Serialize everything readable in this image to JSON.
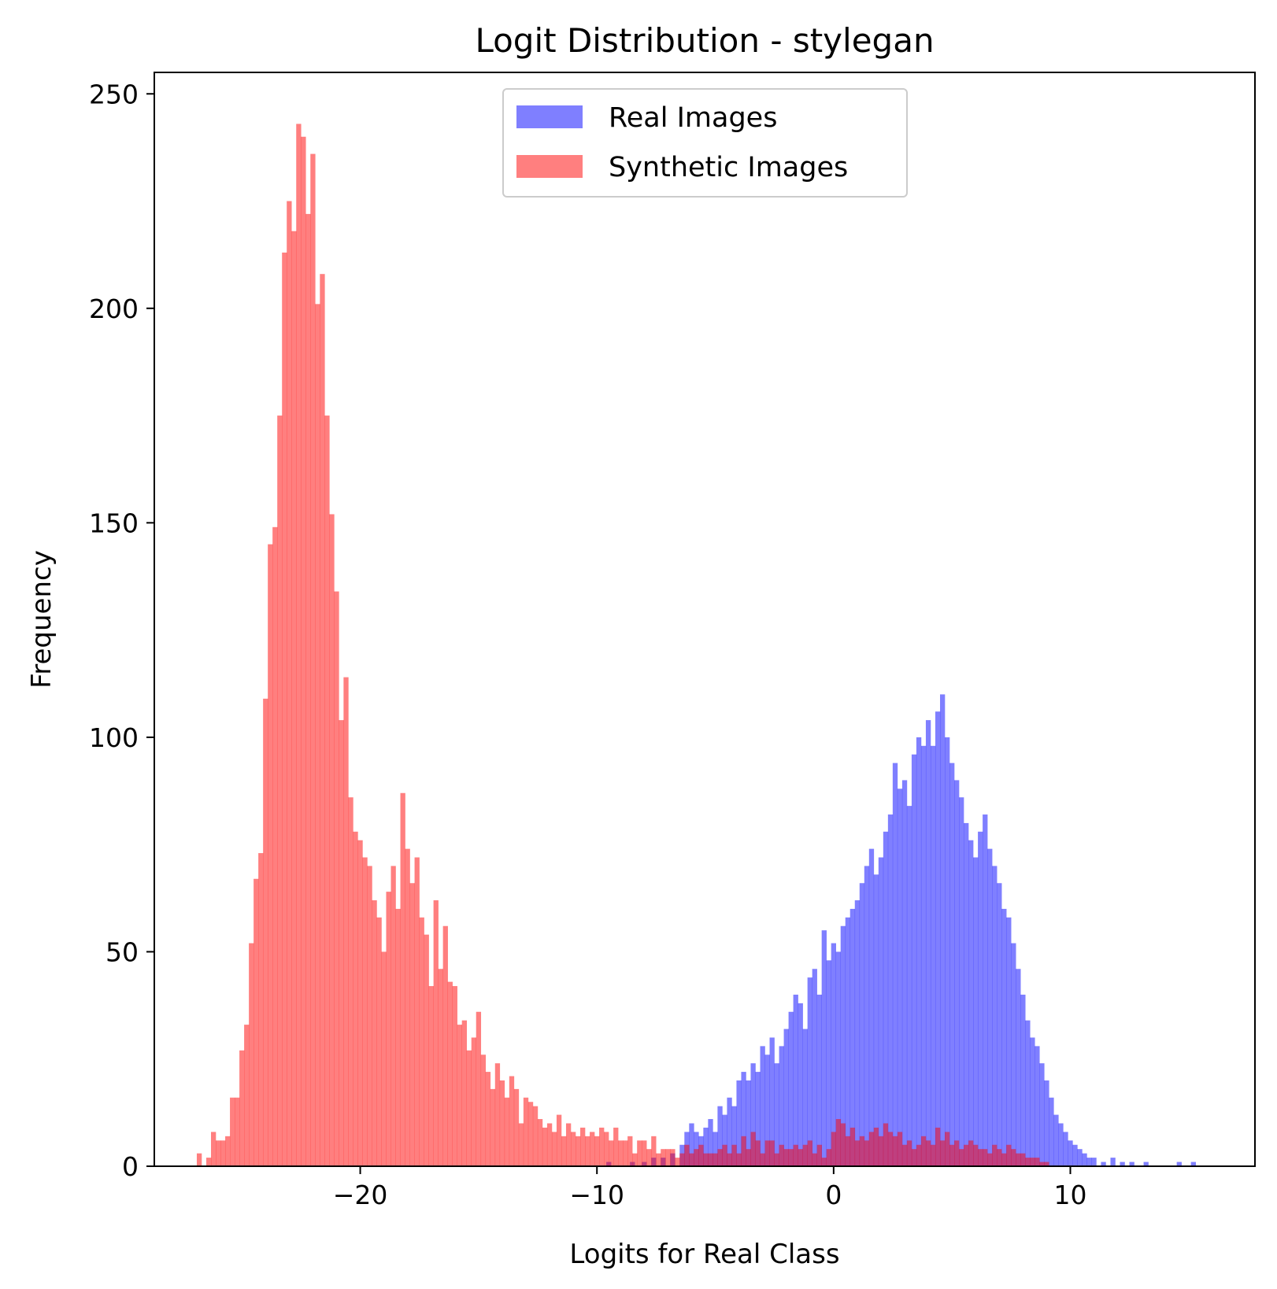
{
  "chart_data": {
    "type": "histogram",
    "title": "Logit Distribution - stylegan",
    "xlabel": "Logits for Real Class",
    "ylabel": "Frequency",
    "xlim": [
      -28.7,
      17.8
    ],
    "ylim": [
      0,
      255
    ],
    "x_ticks": [
      -20,
      -10,
      0,
      10
    ],
    "x_tick_labels": [
      "−20",
      "−10",
      "0",
      "10"
    ],
    "y_ticks": [
      0,
      50,
      100,
      150,
      200,
      250
    ],
    "y_tick_labels": [
      "0",
      "50",
      "100",
      "150",
      "200",
      "250"
    ],
    "grid": false,
    "legend_position": "upper center",
    "series": [
      {
        "name": "Real Images",
        "color": "#0000ff",
        "alpha": 0.5,
        "bin_width": 0.21,
        "bins": [
          [
            -9.5,
            1
          ],
          [
            -8.5,
            1
          ],
          [
            -8.0,
            1
          ],
          [
            -7.6,
            2
          ],
          [
            -7.2,
            2
          ],
          [
            -6.8,
            3
          ],
          [
            -6.4,
            5
          ],
          [
            -6.2,
            8
          ],
          [
            -6.0,
            10
          ],
          [
            -5.8,
            8
          ],
          [
            -5.6,
            7
          ],
          [
            -5.4,
            9
          ],
          [
            -5.2,
            11
          ],
          [
            -5.0,
            8
          ],
          [
            -4.8,
            14
          ],
          [
            -4.6,
            12
          ],
          [
            -4.4,
            16
          ],
          [
            -4.2,
            14
          ],
          [
            -4.0,
            20
          ],
          [
            -3.8,
            22
          ],
          [
            -3.6,
            20
          ],
          [
            -3.4,
            24
          ],
          [
            -3.2,
            22
          ],
          [
            -3.0,
            28
          ],
          [
            -2.8,
            26
          ],
          [
            -2.6,
            30
          ],
          [
            -2.4,
            24
          ],
          [
            -2.2,
            28
          ],
          [
            -2.0,
            32
          ],
          [
            -1.8,
            36
          ],
          [
            -1.6,
            40
          ],
          [
            -1.4,
            38
          ],
          [
            -1.2,
            32
          ],
          [
            -1.0,
            44
          ],
          [
            -0.8,
            46
          ],
          [
            -0.6,
            40
          ],
          [
            -0.4,
            55
          ],
          [
            -0.2,
            48
          ],
          [
            0.0,
            52
          ],
          [
            0.2,
            50
          ],
          [
            0.4,
            56
          ],
          [
            0.6,
            58
          ],
          [
            0.8,
            60
          ],
          [
            1.0,
            62
          ],
          [
            1.2,
            66
          ],
          [
            1.4,
            70
          ],
          [
            1.6,
            74
          ],
          [
            1.8,
            68
          ],
          [
            2.0,
            72
          ],
          [
            2.2,
            78
          ],
          [
            2.4,
            82
          ],
          [
            2.6,
            94
          ],
          [
            2.8,
            88
          ],
          [
            3.0,
            90
          ],
          [
            3.2,
            84
          ],
          [
            3.4,
            96
          ],
          [
            3.6,
            100
          ],
          [
            3.8,
            98
          ],
          [
            4.0,
            104
          ],
          [
            4.2,
            98
          ],
          [
            4.4,
            106
          ],
          [
            4.6,
            110
          ],
          [
            4.8,
            100
          ],
          [
            5.0,
            94
          ],
          [
            5.2,
            90
          ],
          [
            5.4,
            86
          ],
          [
            5.6,
            80
          ],
          [
            5.8,
            76
          ],
          [
            6.0,
            72
          ],
          [
            6.2,
            78
          ],
          [
            6.4,
            82
          ],
          [
            6.6,
            74
          ],
          [
            6.8,
            70
          ],
          [
            7.0,
            66
          ],
          [
            7.2,
            60
          ],
          [
            7.4,
            58
          ],
          [
            7.6,
            52
          ],
          [
            7.8,
            46
          ],
          [
            8.0,
            40
          ],
          [
            8.2,
            34
          ],
          [
            8.4,
            30
          ],
          [
            8.6,
            28
          ],
          [
            8.8,
            24
          ],
          [
            9.0,
            20
          ],
          [
            9.2,
            16
          ],
          [
            9.4,
            12
          ],
          [
            9.6,
            10
          ],
          [
            9.8,
            8
          ],
          [
            10.0,
            6
          ],
          [
            10.2,
            5
          ],
          [
            10.4,
            4
          ],
          [
            10.6,
            3
          ],
          [
            10.8,
            2
          ],
          [
            11.0,
            2
          ],
          [
            11.4,
            1
          ],
          [
            11.8,
            2
          ],
          [
            12.2,
            1
          ],
          [
            12.6,
            1
          ],
          [
            13.2,
            1
          ],
          [
            14.6,
            1
          ],
          [
            15.2,
            1
          ]
        ]
      },
      {
        "name": "Synthetic Images",
        "color": "#ff0000",
        "alpha": 0.5,
        "bin_width": 0.21,
        "bins": [
          [
            -26.8,
            3
          ],
          [
            -26.4,
            2
          ],
          [
            -26.2,
            8
          ],
          [
            -26.0,
            6
          ],
          [
            -25.8,
            6
          ],
          [
            -25.6,
            7
          ],
          [
            -25.4,
            16
          ],
          [
            -25.2,
            16
          ],
          [
            -25.0,
            27
          ],
          [
            -24.8,
            33
          ],
          [
            -24.6,
            52
          ],
          [
            -24.4,
            67
          ],
          [
            -24.2,
            73
          ],
          [
            -24.0,
            109
          ],
          [
            -23.8,
            145
          ],
          [
            -23.6,
            149
          ],
          [
            -23.4,
            175
          ],
          [
            -23.2,
            213
          ],
          [
            -23.0,
            225
          ],
          [
            -22.8,
            218
          ],
          [
            -22.6,
            243
          ],
          [
            -22.4,
            240
          ],
          [
            -22.2,
            222
          ],
          [
            -22.0,
            236
          ],
          [
            -21.8,
            201
          ],
          [
            -21.6,
            208
          ],
          [
            -21.4,
            175
          ],
          [
            -21.2,
            152
          ],
          [
            -21.0,
            134
          ],
          [
            -20.8,
            104
          ],
          [
            -20.6,
            114
          ],
          [
            -20.4,
            86
          ],
          [
            -20.2,
            78
          ],
          [
            -20.0,
            76
          ],
          [
            -19.8,
            72
          ],
          [
            -19.6,
            70
          ],
          [
            -19.4,
            62
          ],
          [
            -19.2,
            58
          ],
          [
            -19.0,
            50
          ],
          [
            -18.8,
            64
          ],
          [
            -18.6,
            70
          ],
          [
            -18.4,
            60
          ],
          [
            -18.2,
            87
          ],
          [
            -18.0,
            74
          ],
          [
            -17.8,
            66
          ],
          [
            -17.6,
            72
          ],
          [
            -17.4,
            58
          ],
          [
            -17.2,
            54
          ],
          [
            -17.0,
            42
          ],
          [
            -16.8,
            62
          ],
          [
            -16.6,
            46
          ],
          [
            -16.4,
            56
          ],
          [
            -16.2,
            43
          ],
          [
            -16.0,
            42
          ],
          [
            -15.8,
            33
          ],
          [
            -15.6,
            34
          ],
          [
            -15.4,
            27
          ],
          [
            -15.2,
            30
          ],
          [
            -15.0,
            36
          ],
          [
            -14.8,
            26
          ],
          [
            -14.6,
            22
          ],
          [
            -14.4,
            18
          ],
          [
            -14.2,
            24
          ],
          [
            -14.0,
            20
          ],
          [
            -13.8,
            16
          ],
          [
            -13.6,
            21
          ],
          [
            -13.4,
            18
          ],
          [
            -13.2,
            10
          ],
          [
            -13.0,
            16
          ],
          [
            -12.8,
            15
          ],
          [
            -12.6,
            14
          ],
          [
            -12.4,
            11
          ],
          [
            -12.2,
            9
          ],
          [
            -12.0,
            10
          ],
          [
            -11.8,
            8
          ],
          [
            -11.6,
            12
          ],
          [
            -11.4,
            7
          ],
          [
            -11.2,
            10
          ],
          [
            -11.0,
            8
          ],
          [
            -10.8,
            7
          ],
          [
            -10.6,
            9
          ],
          [
            -10.4,
            7
          ],
          [
            -10.2,
            8
          ],
          [
            -10.0,
            7
          ],
          [
            -9.8,
            9
          ],
          [
            -9.6,
            8
          ],
          [
            -9.4,
            6
          ],
          [
            -9.2,
            9
          ],
          [
            -9.0,
            6
          ],
          [
            -8.8,
            6
          ],
          [
            -8.6,
            7
          ],
          [
            -8.4,
            3
          ],
          [
            -8.2,
            6
          ],
          [
            -8.0,
            6
          ],
          [
            -7.8,
            4
          ],
          [
            -7.6,
            7
          ],
          [
            -7.4,
            3
          ],
          [
            -7.2,
            4
          ],
          [
            -7.0,
            4
          ],
          [
            -6.8,
            4
          ],
          [
            -6.6,
            2
          ],
          [
            -6.4,
            3
          ],
          [
            -6.2,
            5
          ],
          [
            -6.0,
            3
          ],
          [
            -5.8,
            4
          ],
          [
            -5.6,
            5
          ],
          [
            -5.4,
            3
          ],
          [
            -5.2,
            3
          ],
          [
            -5.0,
            3
          ],
          [
            -4.8,
            4
          ],
          [
            -4.6,
            5
          ],
          [
            -4.4,
            3
          ],
          [
            -4.2,
            5
          ],
          [
            -4.0,
            3
          ],
          [
            -3.8,
            7
          ],
          [
            -3.6,
            4
          ],
          [
            -3.4,
            8
          ],
          [
            -3.2,
            6
          ],
          [
            -3.0,
            3
          ],
          [
            -2.8,
            6
          ],
          [
            -2.6,
            6
          ],
          [
            -2.4,
            3
          ],
          [
            -2.2,
            5
          ],
          [
            -2.0,
            4
          ],
          [
            -1.8,
            4
          ],
          [
            -1.6,
            5
          ],
          [
            -1.4,
            4
          ],
          [
            -1.2,
            5
          ],
          [
            -1.0,
            6
          ],
          [
            -0.8,
            3
          ],
          [
            -0.6,
            5
          ],
          [
            -0.4,
            2
          ],
          [
            -0.2,
            4
          ],
          [
            0.0,
            8
          ],
          [
            0.2,
            11
          ],
          [
            0.4,
            10
          ],
          [
            0.6,
            7
          ],
          [
            0.8,
            9
          ],
          [
            1.0,
            6
          ],
          [
            1.2,
            7
          ],
          [
            1.4,
            6
          ],
          [
            1.6,
            8
          ],
          [
            1.8,
            9
          ],
          [
            2.0,
            7
          ],
          [
            2.2,
            10
          ],
          [
            2.4,
            8
          ],
          [
            2.6,
            7
          ],
          [
            2.8,
            8
          ],
          [
            3.0,
            5
          ],
          [
            3.2,
            6
          ],
          [
            3.4,
            4
          ],
          [
            3.6,
            5
          ],
          [
            3.8,
            7
          ],
          [
            4.0,
            6
          ],
          [
            4.2,
            5
          ],
          [
            4.4,
            9
          ],
          [
            4.6,
            6
          ],
          [
            4.8,
            8
          ],
          [
            5.0,
            5
          ],
          [
            5.2,
            6
          ],
          [
            5.4,
            4
          ],
          [
            5.6,
            5
          ],
          [
            5.8,
            6
          ],
          [
            6.0,
            5
          ],
          [
            6.2,
            4
          ],
          [
            6.4,
            4
          ],
          [
            6.6,
            3
          ],
          [
            6.8,
            5
          ],
          [
            7.0,
            4
          ],
          [
            7.2,
            3
          ],
          [
            7.4,
            5
          ],
          [
            7.6,
            4
          ],
          [
            7.8,
            3
          ],
          [
            8.0,
            3
          ],
          [
            8.2,
            2
          ],
          [
            8.4,
            2
          ],
          [
            8.6,
            2
          ],
          [
            8.8,
            1
          ],
          [
            9.0,
            1
          ]
        ]
      }
    ]
  }
}
